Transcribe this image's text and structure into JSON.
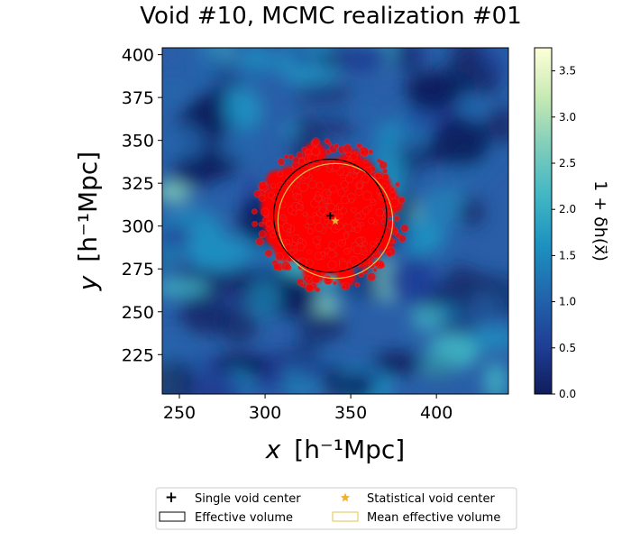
{
  "chart_data": {
    "type": "heatmap",
    "title": "Void #10, MCMC realization #01",
    "xlabel_var": "x",
    "xlabel_unit": "[h⁻¹Mpc]",
    "ylabel_var": "y",
    "ylabel_unit": "[h⁻¹Mpc]",
    "xlim": [
      240,
      442
    ],
    "ylim": [
      202,
      404
    ],
    "xticks": [
      250,
      300,
      350,
      400
    ],
    "yticks": [
      225,
      250,
      275,
      300,
      325,
      350,
      375,
      400
    ],
    "colorbar": {
      "label": "1 + δh(x⃗)",
      "range": [
        0,
        3.75
      ],
      "ticks": [
        "0.0",
        "0.5",
        "1.0",
        "1.5",
        "2.0",
        "2.5",
        "3.0",
        "3.5"
      ],
      "tick_values": [
        0,
        0.5,
        1.0,
        1.5,
        2.0,
        2.5,
        3.0,
        3.5
      ],
      "colors": [
        "#0f1d5c",
        "#1f3f97",
        "#2166ac",
        "#1d91c0",
        "#41b6c4",
        "#7fcdbb",
        "#c7e9b4",
        "#ffffd9"
      ]
    },
    "single_void_center": {
      "x": 338,
      "y": 306
    },
    "statistical_void_center": {
      "x": 341,
      "y": 303
    },
    "effective_radius": 33,
    "mean_effective_radius": 33.5,
    "tracer_color": "#ff0000",
    "legend": {
      "placement": "bottom-center",
      "entries": [
        {
          "label": "Single void center",
          "marker": "plus",
          "color": "#000000"
        },
        {
          "label": "Statistical void center",
          "marker": "star",
          "color": "#f0b030"
        },
        {
          "label": "Effective volume",
          "marker": "circle-edge",
          "color": "#000000"
        },
        {
          "label": "Mean effective volume",
          "marker": "circle-edge",
          "color": "#e6c34a"
        }
      ]
    }
  }
}
